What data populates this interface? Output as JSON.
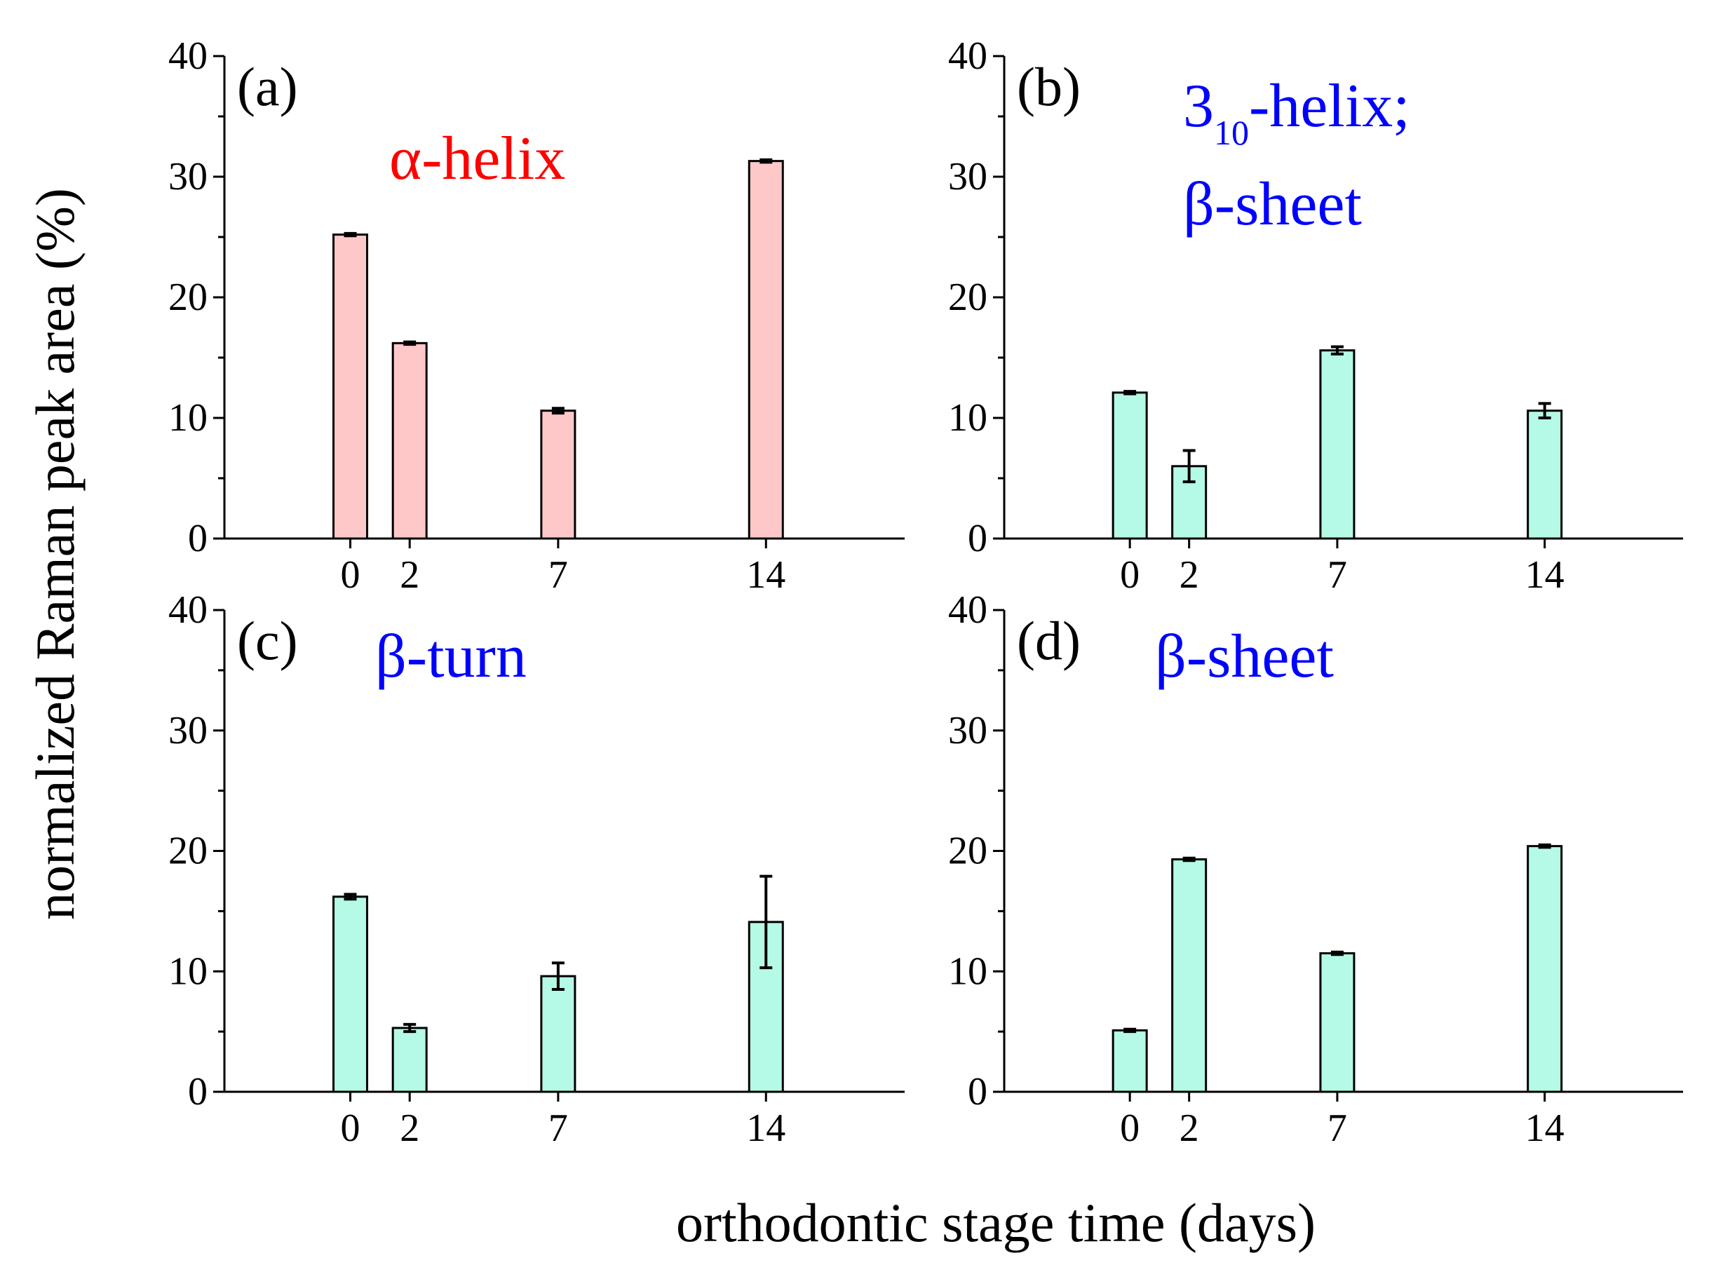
{
  "figure": {
    "ylabel": "normalized Raman peak area (%)",
    "xlabel": "orthodontic stage time (days)"
  },
  "chart_data": [
    {
      "type": "bar",
      "panel": "(a)",
      "annotation": [
        "α-helix"
      ],
      "annotation_color": "#ff0000",
      "bar_color": "#ffc8c8",
      "x": [
        0,
        2,
        7,
        14
      ],
      "xticks": [
        "0",
        "2",
        "7",
        "14"
      ],
      "values": [
        25.2,
        16.2,
        10.6,
        31.3
      ],
      "errors": [
        0.1,
        0.1,
        0.2,
        0.1
      ],
      "ylim": [
        0,
        40
      ],
      "yticks": [
        "0",
        "10",
        "20",
        "30",
        "40"
      ]
    },
    {
      "type": "bar",
      "panel": "(b)",
      "annotation": [
        "3",
        "10",
        "-helix;",
        "β-sheet"
      ],
      "annotation_color": "#0000ff",
      "bar_color": "#b4fae6",
      "x": [
        0,
        2,
        7,
        14
      ],
      "xticks": [
        "0",
        "2",
        "7",
        "14"
      ],
      "values": [
        12.1,
        6.0,
        15.6,
        10.6
      ],
      "errors": [
        0.1,
        1.3,
        0.3,
        0.6
      ],
      "ylim": [
        0,
        40
      ],
      "yticks": [
        "0",
        "10",
        "20",
        "30",
        "40"
      ]
    },
    {
      "type": "bar",
      "panel": "(c)",
      "annotation": [
        "β-turn"
      ],
      "annotation_color": "#0000ff",
      "bar_color": "#b4fae6",
      "x": [
        0,
        2,
        7,
        14
      ],
      "xticks": [
        "0",
        "2",
        "7",
        "14"
      ],
      "values": [
        16.2,
        5.3,
        9.6,
        14.1
      ],
      "errors": [
        0.2,
        0.3,
        1.1,
        3.8
      ],
      "ylim": [
        0,
        40
      ],
      "yticks": [
        "0",
        "10",
        "20",
        "30",
        "40"
      ]
    },
    {
      "type": "bar",
      "panel": "(d)",
      "annotation": [
        "β-sheet"
      ],
      "annotation_color": "#0000ff",
      "bar_color": "#b4fae6",
      "x": [
        0,
        2,
        7,
        14
      ],
      "xticks": [
        "0",
        "2",
        "7",
        "14"
      ],
      "values": [
        5.1,
        19.3,
        11.5,
        20.4
      ],
      "errors": [
        0.1,
        0.1,
        0.1,
        0.1
      ],
      "ylim": [
        0,
        40
      ],
      "yticks": [
        "0",
        "10",
        "20",
        "30",
        "40"
      ]
    }
  ]
}
